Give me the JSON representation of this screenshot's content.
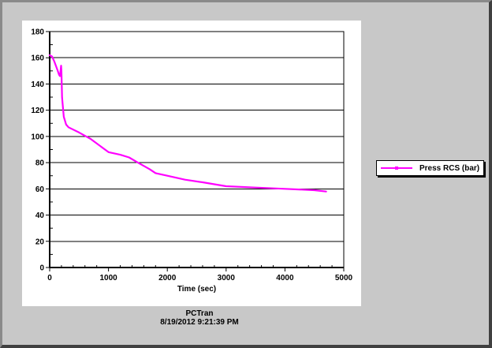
{
  "chart_data": {
    "type": "line",
    "xlabel": "Time (sec)",
    "ylabel": "",
    "xlim": [
      0,
      5000
    ],
    "ylim": [
      0,
      180
    ],
    "x_ticks": [
      0,
      1000,
      2000,
      3000,
      4000,
      5000
    ],
    "y_ticks": [
      0,
      20,
      40,
      60,
      80,
      100,
      120,
      140,
      160,
      180
    ],
    "grid": "horizontal",
    "legend_position": "right",
    "series": [
      {
        "name": "Press RCS (bar)",
        "color": "#ff00ff",
        "x": [
          0,
          40,
          80,
          130,
          160,
          175,
          185,
          195,
          200,
          205,
          210,
          220,
          240,
          280,
          320,
          500,
          700,
          1000,
          1200,
          1350,
          1500,
          1700,
          1800,
          2000,
          2300,
          2600,
          3000,
          3500,
          4000,
          4500,
          4700
        ],
        "y": [
          162,
          161,
          157,
          151,
          147,
          146,
          150,
          154,
          150,
          140,
          130,
          125,
          115,
          109,
          107,
          103,
          98,
          88,
          86,
          84,
          80,
          75,
          72,
          70,
          67,
          65,
          62,
          61,
          60,
          59,
          58
        ]
      }
    ]
  },
  "footer": {
    "app_name": "PCTran",
    "timestamp": "8/19/2012 9:21:39 PM"
  }
}
